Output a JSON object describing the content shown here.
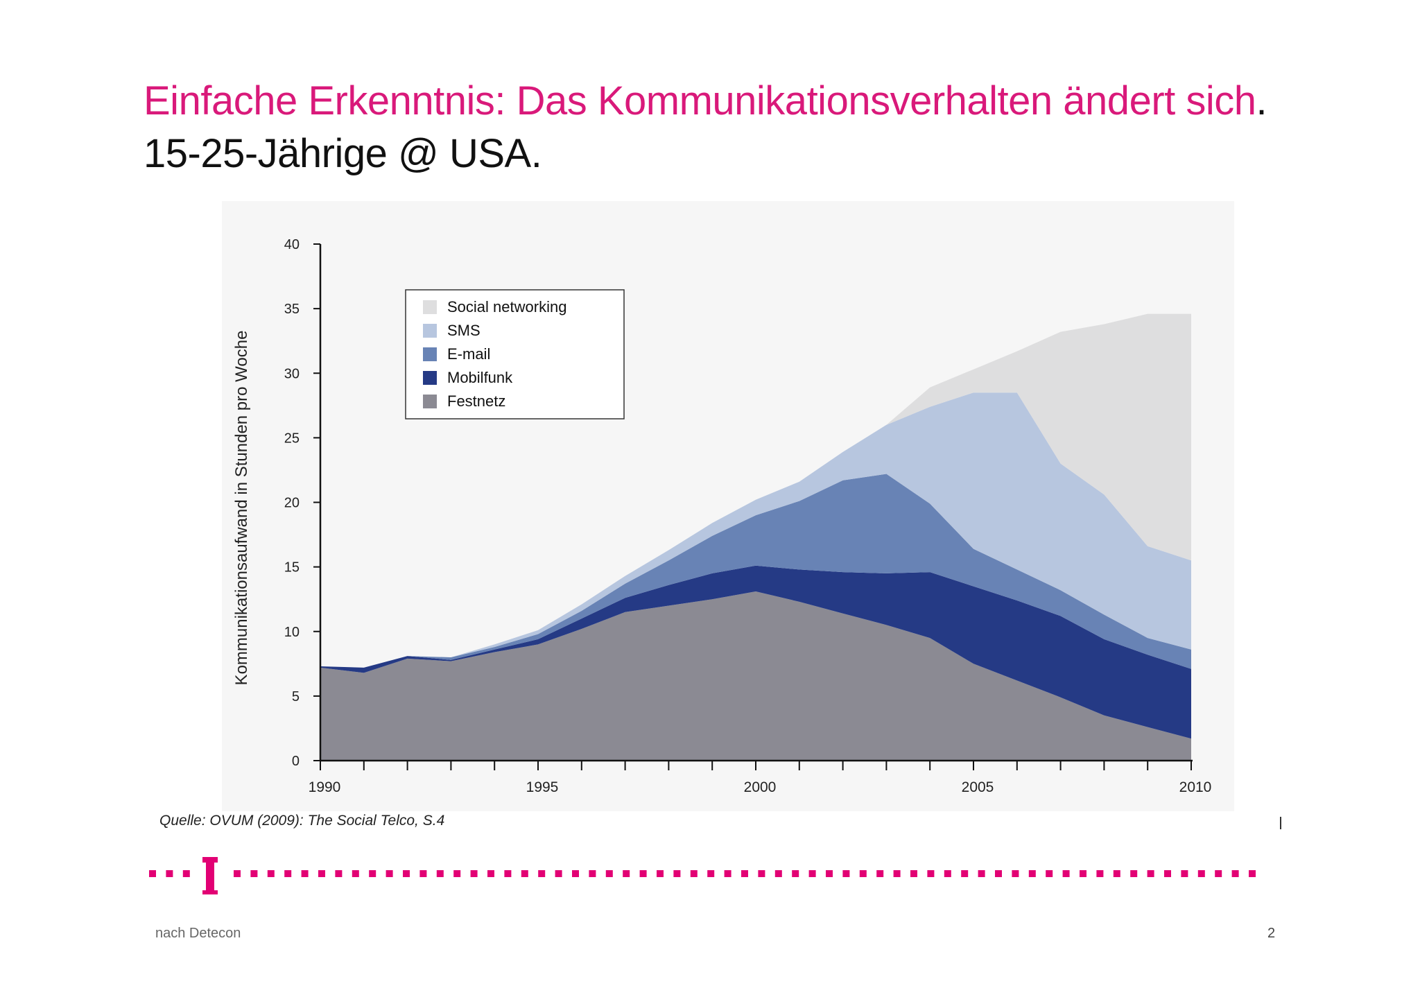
{
  "slide": {
    "title_main": "Einfache Erkenntnis: Das Kommunikationsverhalten ändert sich",
    "title_dot": ".",
    "subtitle": "15-25-Jährige @ USA.",
    "source": "Quelle: OVUM (2009): The Social Telco, S.4",
    "footer": "nach Detecon",
    "page_number": "2",
    "brand_color": "#e20074"
  },
  "chart_data": {
    "type": "area",
    "stacked": true,
    "title": "",
    "xlabel": "",
    "ylabel": "Kommunikationsaufwand in Stunden pro Woche",
    "xlim": [
      1990,
      2010
    ],
    "ylim": [
      0,
      40
    ],
    "yticks": [
      0,
      5,
      10,
      15,
      20,
      25,
      30,
      35,
      40
    ],
    "xtick_labels": [
      "1990",
      "1995",
      "2000",
      "2005",
      "2010"
    ],
    "legend_position": "top-left",
    "x": [
      1990,
      1991,
      1992,
      1993,
      1994,
      1995,
      1996,
      1997,
      1998,
      1999,
      2000,
      2001,
      2002,
      2003,
      2004,
      2005,
      2006,
      2007,
      2008,
      2009,
      2010
    ],
    "series": [
      {
        "name": "Festnetz",
        "color": "#8b8a93",
        "values": [
          7.2,
          6.8,
          7.9,
          7.7,
          8.4,
          9.0,
          10.2,
          11.5,
          12.0,
          12.5,
          13.1,
          12.3,
          11.4,
          10.5,
          9.5,
          7.5,
          6.2,
          4.9,
          3.5,
          2.6,
          1.7
        ]
      },
      {
        "name": "Mobilfunk",
        "color": "#253a85",
        "values": [
          0.1,
          0.4,
          0.2,
          0.1,
          0.2,
          0.4,
          0.8,
          1.1,
          1.6,
          2.0,
          2.0,
          2.5,
          3.2,
          4.0,
          5.1,
          6.0,
          6.2,
          6.3,
          5.9,
          5.6,
          5.4
        ]
      },
      {
        "name": "E-mail",
        "color": "#6883b5",
        "values": [
          0.0,
          0.0,
          0.0,
          0.2,
          0.2,
          0.4,
          0.6,
          1.1,
          1.9,
          2.9,
          3.9,
          5.3,
          7.1,
          7.7,
          5.3,
          2.9,
          2.4,
          2.0,
          1.9,
          1.3,
          1.5
        ]
      },
      {
        "name": "SMS",
        "color": "#b7c6df",
        "values": [
          0.0,
          0.0,
          0.0,
          0.0,
          0.2,
          0.3,
          0.5,
          0.6,
          0.8,
          1.0,
          1.2,
          1.5,
          2.2,
          3.8,
          7.5,
          12.1,
          13.7,
          9.8,
          9.3,
          7.1,
          6.9
        ]
      },
      {
        "name": "Social networking",
        "color": "#dededf",
        "values": [
          0.0,
          0.0,
          0.0,
          0.0,
          0.0,
          0.0,
          0.0,
          0.0,
          0.0,
          0.0,
          0.0,
          0.0,
          0.0,
          0.0,
          1.5,
          1.8,
          3.2,
          10.2,
          13.2,
          18.0,
          19.1
        ]
      }
    ]
  }
}
